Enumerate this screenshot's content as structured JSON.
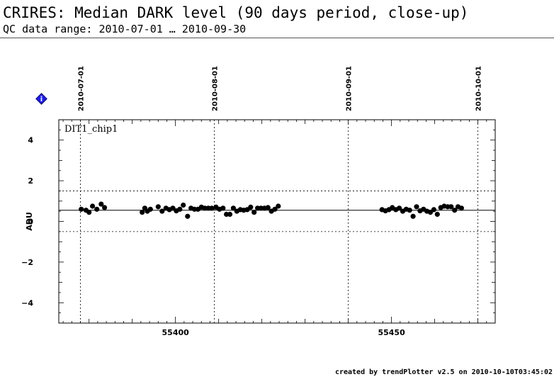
{
  "header": {
    "title": "CRIRES: Median DARK level (90 days period, close-up)",
    "subtitle": "QC data range: 2010-07-01 … 2010-09-30"
  },
  "footer": {
    "text": "created by trendPlotter v2.5 on 2010-10-10T03:45:02"
  },
  "info_icon": {
    "name": "info-icon",
    "glyph": "i",
    "color": "#1a1aff"
  },
  "chart_data": {
    "type": "scatter",
    "panel_label": "DIT1_chip1",
    "ylabel": "ADU",
    "xlim": [
      55373,
      55474
    ],
    "ylim": [
      -5,
      5
    ],
    "x_ticks": [
      55400,
      55450
    ],
    "y_ticks": [
      -4,
      -2,
      0,
      2,
      4
    ],
    "date_markers": [
      {
        "label": "2010-07-01",
        "x": 55378
      },
      {
        "label": "2010-08-01",
        "x": 55409
      },
      {
        "label": "2010-09-01",
        "x": 55440
      },
      {
        "label": "2010-10-01",
        "x": 55470
      }
    ],
    "reference_lines": {
      "median": 0.55,
      "upper": 1.5,
      "lower": -0.5
    },
    "series": [
      {
        "points": [
          [
            55378.2,
            0.6
          ],
          [
            55379.3,
            0.55
          ],
          [
            55380.0,
            0.45
          ],
          [
            55380.8,
            0.75
          ],
          [
            55381.8,
            0.6
          ],
          [
            55382.8,
            0.85
          ],
          [
            55383.6,
            0.68
          ],
          [
            55392.3,
            0.45
          ],
          [
            55392.9,
            0.65
          ],
          [
            55393.5,
            0.5
          ],
          [
            55394.2,
            0.6
          ],
          [
            55396.0,
            0.72
          ],
          [
            55396.9,
            0.5
          ],
          [
            55397.8,
            0.65
          ],
          [
            55398.6,
            0.58
          ],
          [
            55399.4,
            0.65
          ],
          [
            55400.2,
            0.52
          ],
          [
            55401.0,
            0.6
          ],
          [
            55401.8,
            0.8
          ],
          [
            55402.8,
            0.25
          ],
          [
            55403.6,
            0.65
          ],
          [
            55404.4,
            0.6
          ],
          [
            55405.2,
            0.6
          ],
          [
            55406.0,
            0.7
          ],
          [
            55406.8,
            0.65
          ],
          [
            55407.6,
            0.65
          ],
          [
            55408.4,
            0.65
          ],
          [
            55409.4,
            0.7
          ],
          [
            55410.2,
            0.6
          ],
          [
            55411.0,
            0.65
          ],
          [
            55411.8,
            0.35
          ],
          [
            55412.6,
            0.35
          ],
          [
            55413.4,
            0.65
          ],
          [
            55414.2,
            0.5
          ],
          [
            55415.0,
            0.58
          ],
          [
            55415.8,
            0.55
          ],
          [
            55416.6,
            0.58
          ],
          [
            55417.4,
            0.7
          ],
          [
            55418.2,
            0.45
          ],
          [
            55419.0,
            0.65
          ],
          [
            55419.8,
            0.65
          ],
          [
            55420.6,
            0.65
          ],
          [
            55421.4,
            0.68
          ],
          [
            55422.2,
            0.5
          ],
          [
            55423.0,
            0.6
          ],
          [
            55423.8,
            0.75
          ],
          [
            55447.8,
            0.58
          ],
          [
            55448.6,
            0.52
          ],
          [
            55449.4,
            0.58
          ],
          [
            55450.2,
            0.68
          ],
          [
            55451.0,
            0.58
          ],
          [
            55451.8,
            0.65
          ],
          [
            55452.6,
            0.5
          ],
          [
            55453.4,
            0.6
          ],
          [
            55454.2,
            0.55
          ],
          [
            55455.0,
            0.25
          ],
          [
            55455.8,
            0.72
          ],
          [
            55456.6,
            0.52
          ],
          [
            55457.4,
            0.6
          ],
          [
            55458.2,
            0.5
          ],
          [
            55459.0,
            0.45
          ],
          [
            55459.8,
            0.58
          ],
          [
            55460.6,
            0.35
          ],
          [
            55461.4,
            0.68
          ],
          [
            55462.2,
            0.75
          ],
          [
            55463.0,
            0.72
          ],
          [
            55463.8,
            0.72
          ],
          [
            55464.6,
            0.55
          ],
          [
            55465.4,
            0.72
          ],
          [
            55466.2,
            0.65
          ]
        ]
      }
    ]
  }
}
